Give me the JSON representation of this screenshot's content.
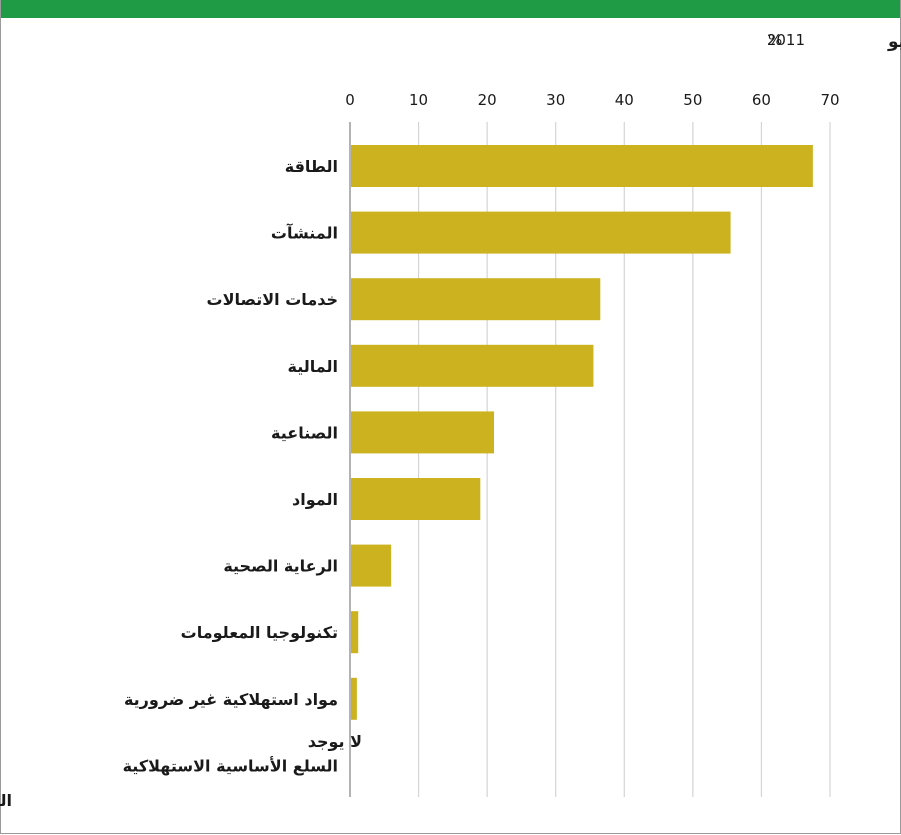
{
  "header": {
    "date_word": "يونيو",
    "year": "2011",
    "unit": "%"
  },
  "source": "المصدر بنك دويتشه",
  "no_data_label": "لا يوجد",
  "colors": {
    "bar": "#cdb21f",
    "top_bar": "#1f9a45",
    "grid": "#d4d4d4",
    "axis": "#9a9a9a"
  },
  "chart_data": {
    "type": "bar",
    "orientation": "horizontal",
    "title": "",
    "xlabel": "%",
    "ylabel": "",
    "xlim": [
      0,
      70
    ],
    "x_ticks": [
      0,
      10,
      20,
      30,
      40,
      50,
      60,
      70
    ],
    "grid": true,
    "categories": [
      "الطاقة",
      "المنشآت",
      "خدمات الاتصالات",
      "المالية",
      "الصناعية",
      "المواد",
      "الرعاية الصحية",
      "تكنولوجيا المعلومات",
      "مواد استهلاكية غير ضرورية",
      "السلع الأساسية الاستهلاكية"
    ],
    "values": [
      67.5,
      55.5,
      36.5,
      35.5,
      21,
      19,
      6,
      1.2,
      1,
      null
    ]
  }
}
